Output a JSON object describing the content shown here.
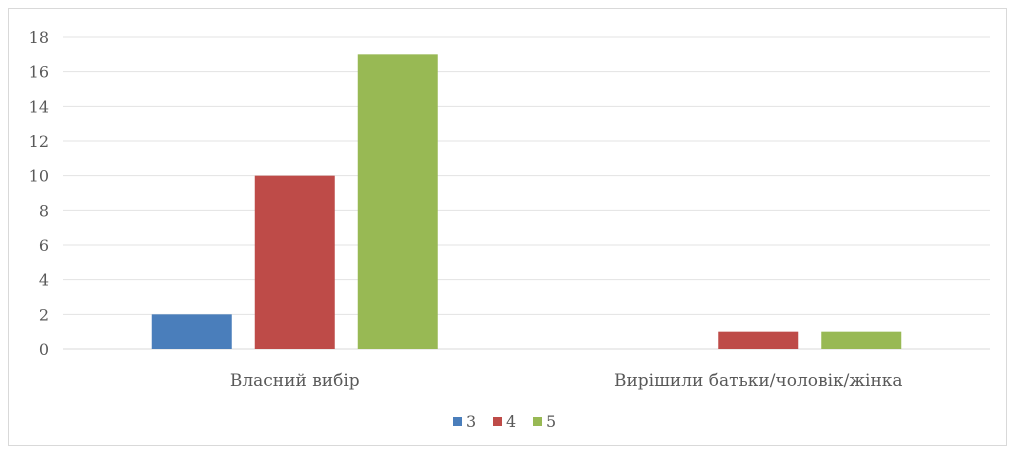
{
  "chart_data": {
    "type": "bar",
    "title": "",
    "xlabel": "",
    "ylabel": "",
    "categories": [
      "Власний вибір",
      "Вирішили батьки/чоловік/жінка"
    ],
    "series": [
      {
        "name": "3",
        "values": [
          2,
          0
        ],
        "color": "#4a7ebb"
      },
      {
        "name": "4",
        "values": [
          10,
          1
        ],
        "color": "#be4b48"
      },
      {
        "name": "5",
        "values": [
          17,
          1
        ],
        "color": "#98b954"
      }
    ],
    "ylim": [
      0,
      18
    ],
    "yticks": [
      0,
      2,
      4,
      6,
      8,
      10,
      12,
      14,
      16,
      18
    ],
    "grid": true,
    "legend": "bottom-center"
  }
}
